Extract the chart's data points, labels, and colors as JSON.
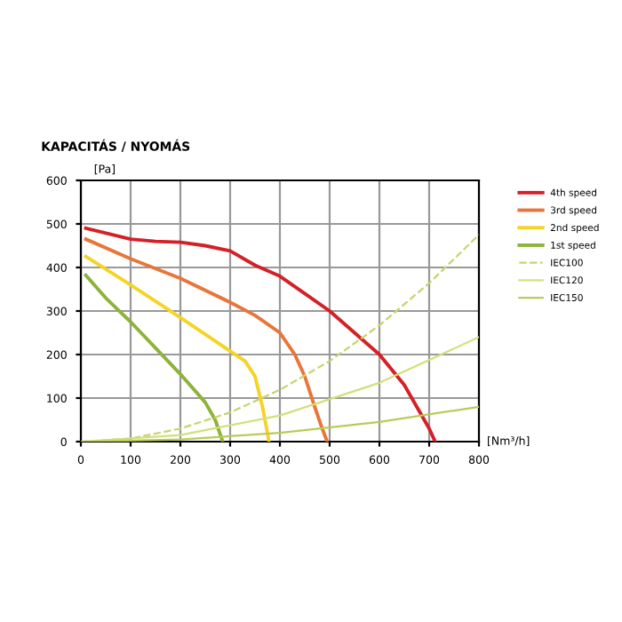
{
  "chart_data": {
    "type": "line",
    "title": "KAPACITÁS / NYOMÁS",
    "ylabel": "[Pa]",
    "xlabel": "[Nm³/h]",
    "xlim": [
      0,
      800
    ],
    "xticks": [
      0,
      100,
      200,
      300,
      400,
      500,
      600,
      700,
      800
    ],
    "ylim": [
      0,
      600
    ],
    "yticks": [
      0,
      100,
      200,
      300,
      400,
      500,
      600
    ],
    "grid": true,
    "legend": "top right",
    "line_style": "solid",
    "marker": "none",
    "series": [
      {
        "name": "4th speed",
        "color": "#d42027",
        "x": [
          10,
          100,
          150,
          200,
          250,
          300,
          350,
          400,
          450,
          500,
          550,
          600,
          650,
          700,
          712
        ],
        "values": [
          490,
          465,
          460,
          458,
          450,
          438,
          405,
          380,
          340,
          300,
          250,
          200,
          130,
          30,
          0
        ]
      },
      {
        "name": "3rd speed",
        "color": "#e8753a",
        "x": [
          10,
          100,
          200,
          300,
          350,
          400,
          430,
          450,
          470,
          485,
          495
        ],
        "values": [
          465,
          420,
          375,
          320,
          290,
          250,
          200,
          150,
          80,
          30,
          0
        ]
      },
      {
        "name": "2nd speed",
        "color": "#f5d327",
        "x": [
          10,
          100,
          200,
          300,
          330,
          350,
          365,
          375,
          378
        ],
        "values": [
          425,
          360,
          285,
          208,
          185,
          150,
          80,
          20,
          0
        ]
      },
      {
        "name": "1st speed",
        "color": "#8db33a",
        "x": [
          10,
          50,
          100,
          150,
          200,
          250,
          270,
          285
        ],
        "values": [
          382,
          330,
          275,
          215,
          155,
          90,
          50,
          0
        ]
      },
      {
        "name": "IEC100",
        "color": "#c8d46e",
        "line_style": "dashed",
        "x": [
          0,
          100,
          200,
          300,
          400,
          500,
          600,
          700,
          800
        ],
        "values": [
          0,
          7,
          30,
          67,
          119,
          185,
          267,
          364,
          475
        ]
      },
      {
        "name": "IEC120",
        "color": "#d4df7a",
        "x": [
          0,
          200,
          400,
          600,
          800
        ],
        "values": [
          0,
          15,
          60,
          135,
          240
        ]
      },
      {
        "name": "IEC150",
        "color": "#b8cc58",
        "x": [
          0,
          200,
          400,
          600,
          800
        ],
        "values": [
          0,
          5,
          20,
          45,
          80
        ]
      }
    ]
  }
}
